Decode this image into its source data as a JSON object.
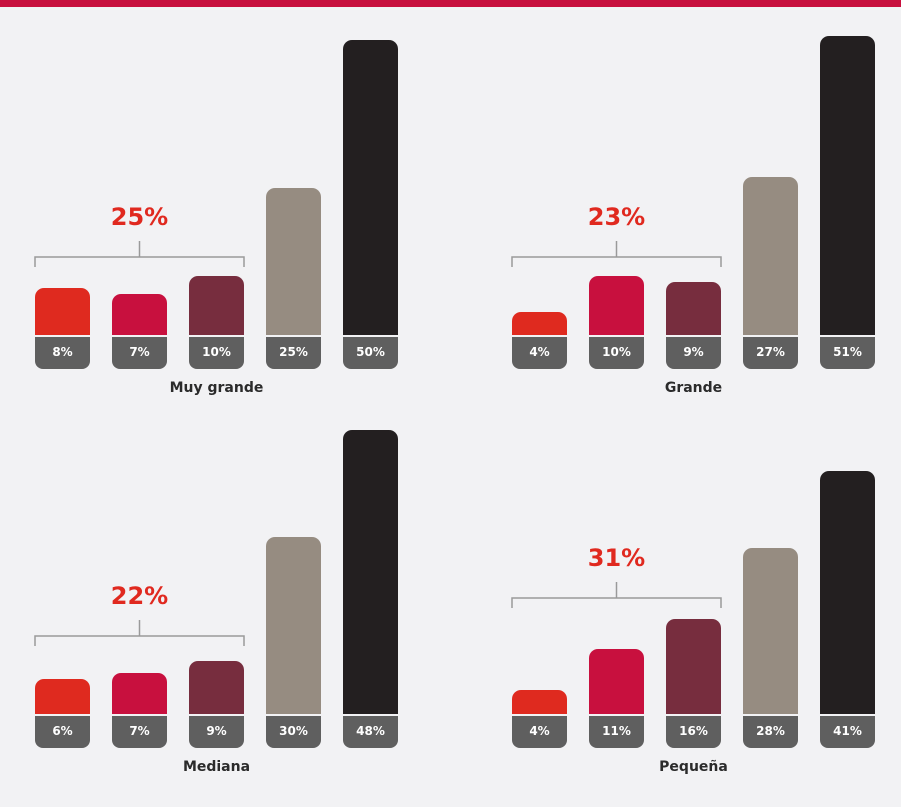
{
  "colors": {
    "top_bar": "#c8103e",
    "bracket": "#9a9a9a",
    "group_label": "#e0291f",
    "series": [
      "#df2a1f",
      "#c8103e",
      "#772d3e",
      "#968c81",
      "#231f20"
    ]
  },
  "chart_data": [
    {
      "type": "bar",
      "title": "Muy grande",
      "categories": [
        "1",
        "2",
        "3",
        "4",
        "5"
      ],
      "values": [
        8,
        7,
        10,
        25,
        50
      ],
      "value_labels": [
        "8%",
        "7%",
        "10%",
        "25%",
        "50%"
      ],
      "group_label": "25%",
      "ylim": [
        0,
        50
      ]
    },
    {
      "type": "bar",
      "title": "Grande",
      "categories": [
        "1",
        "2",
        "3",
        "4",
        "5"
      ],
      "values": [
        4,
        10,
        9,
        27,
        51
      ],
      "value_labels": [
        "4%",
        "10%",
        "9%",
        "27%",
        "51%"
      ],
      "group_label": "23%",
      "ylim": [
        0,
        51
      ]
    },
    {
      "type": "bar",
      "title": "Mediana",
      "categories": [
        "1",
        "2",
        "3",
        "4",
        "5"
      ],
      "values": [
        6,
        7,
        9,
        30,
        48
      ],
      "value_labels": [
        "6%",
        "7%",
        "9%",
        "30%",
        "48%"
      ],
      "group_label": "22%",
      "ylim": [
        0,
        48
      ]
    },
    {
      "type": "bar",
      "title": "Pequeña",
      "categories": [
        "1",
        "2",
        "3",
        "4",
        "5"
      ],
      "values": [
        4,
        11,
        16,
        28,
        41
      ],
      "value_labels": [
        "4%",
        "11%",
        "16%",
        "28%",
        "41%"
      ],
      "group_label": "31%",
      "ylim": [
        0,
        41
      ]
    }
  ]
}
